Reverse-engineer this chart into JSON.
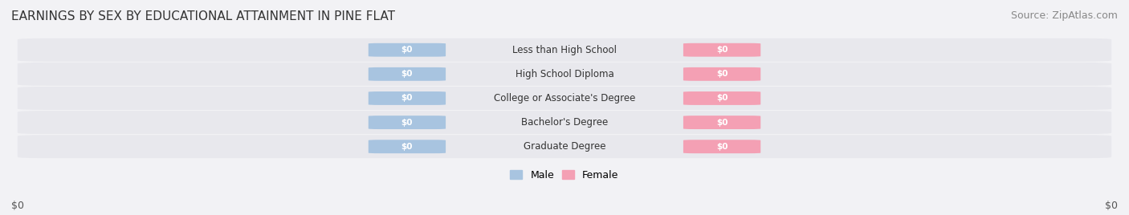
{
  "title": "EARNINGS BY SEX BY EDUCATIONAL ATTAINMENT IN PINE FLAT",
  "source": "Source: ZipAtlas.com",
  "categories": [
    "Less than High School",
    "High School Diploma",
    "College or Associate's Degree",
    "Bachelor's Degree",
    "Graduate Degree"
  ],
  "male_values": [
    0,
    0,
    0,
    0,
    0
  ],
  "female_values": [
    0,
    0,
    0,
    0,
    0
  ],
  "male_color": "#a8c4e0",
  "female_color": "#f4a0b4",
  "male_label": "Male",
  "female_label": "Female",
  "bar_background": "#e8e8ed",
  "xlabel_left": "$0",
  "xlabel_right": "$0",
  "title_fontsize": 11,
  "source_fontsize": 9,
  "tick_fontsize": 9,
  "bar_height": 0.55,
  "bar_value_label": "$0"
}
